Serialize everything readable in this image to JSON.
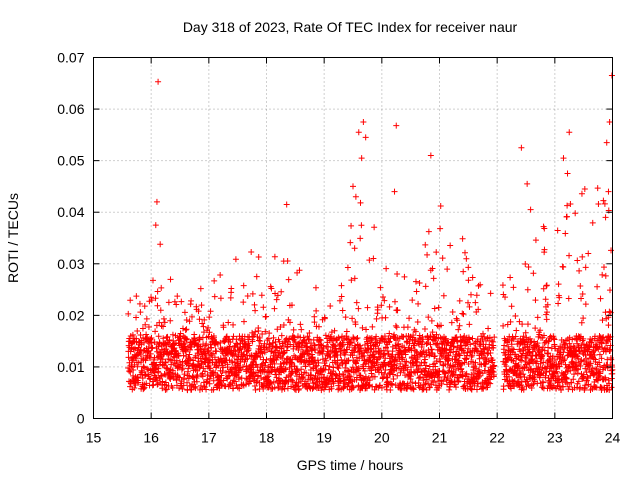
{
  "chart_data": {
    "type": "scatter",
    "title": "Day 318 of 2023, Rate Of TEC Index for receiver naur",
    "xlabel": "GPS time / hours",
    "ylabel": "ROTI / TECUs",
    "xlim": [
      15,
      24
    ],
    "ylim": [
      0,
      0.07
    ],
    "xticks": [
      "15",
      "16",
      "17",
      "18",
      "19",
      "20",
      "21",
      "22",
      "23",
      "24"
    ],
    "yticks": [
      "0",
      "0.01",
      "0.02",
      "0.03",
      "0.04",
      "0.05",
      "0.06",
      "0.07"
    ],
    "grid": true,
    "marker": "+",
    "series": [
      {
        "name": "ROTI",
        "color": "#ff0000",
        "sampled": true,
        "x_start": 15.6,
        "x_end": 24.0,
        "gap": [
          21.95,
          22.1
        ],
        "typical_range": [
          0.005,
          0.02
        ],
        "outliers": [
          {
            "x": 16.12,
            "y": 0.0653
          },
          {
            "x": 16.1,
            "y": 0.042
          },
          {
            "x": 16.08,
            "y": 0.0375
          },
          {
            "x": 18.35,
            "y": 0.0415
          },
          {
            "x": 19.6,
            "y": 0.0555
          },
          {
            "x": 19.68,
            "y": 0.0575
          },
          {
            "x": 19.72,
            "y": 0.0545
          },
          {
            "x": 19.65,
            "y": 0.0505
          },
          {
            "x": 19.5,
            "y": 0.045
          },
          {
            "x": 19.55,
            "y": 0.043
          },
          {
            "x": 20.25,
            "y": 0.0568
          },
          {
            "x": 20.22,
            "y": 0.044
          },
          {
            "x": 20.85,
            "y": 0.051
          },
          {
            "x": 22.42,
            "y": 0.0525
          },
          {
            "x": 22.52,
            "y": 0.0455
          },
          {
            "x": 22.58,
            "y": 0.0405
          },
          {
            "x": 23.15,
            "y": 0.0505
          },
          {
            "x": 23.25,
            "y": 0.0555
          },
          {
            "x": 23.22,
            "y": 0.0475
          },
          {
            "x": 23.52,
            "y": 0.0445
          },
          {
            "x": 23.9,
            "y": 0.0535
          },
          {
            "x": 23.95,
            "y": 0.0575
          },
          {
            "x": 23.99,
            "y": 0.0665
          },
          {
            "x": 23.93,
            "y": 0.044
          },
          {
            "x": 23.88,
            "y": 0.039
          }
        ]
      }
    ]
  }
}
